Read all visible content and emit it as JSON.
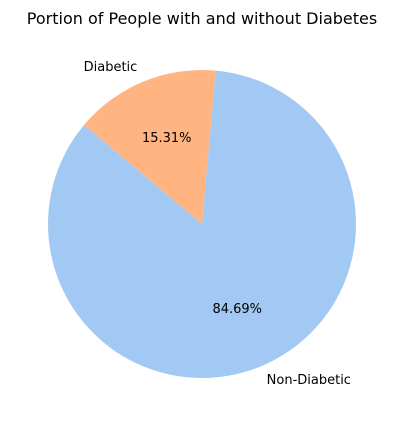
{
  "chart_data": {
    "type": "pie",
    "title": "Portion of People with and without Diabetes",
    "categories": [
      "Non-Diabetic",
      "Diabetic"
    ],
    "values": [
      84.69,
      15.31
    ],
    "percent_labels": [
      "84.69%",
      "15.31%"
    ],
    "colors": [
      "#a1c9f4",
      "#ffb482"
    ],
    "legend": "none",
    "grid": false
  }
}
